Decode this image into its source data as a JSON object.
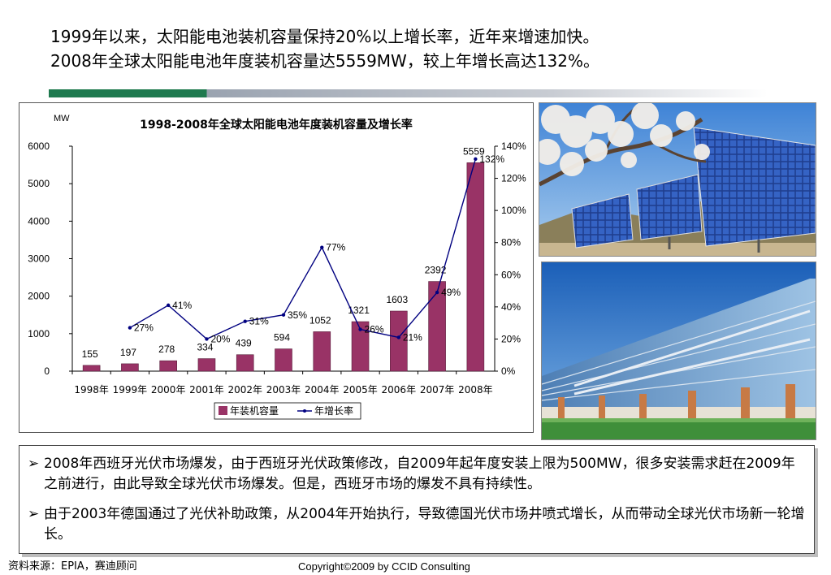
{
  "headline": {
    "line1": "1999年以来，太阳能电池装机容量保持20%以上增长率，近年来增速加快。",
    "line2": "2008年全球太阳能电池年度装机容量达5559MW，较上年增长高达132%。"
  },
  "chart_data": {
    "type": "bar",
    "title": "1998-2008年全球太阳能电池年度装机容量及增长率",
    "y_unit_label": "MW",
    "categories": [
      "1998年",
      "1999年",
      "2000年",
      "2001年",
      "2002年",
      "2003年",
      "2004年",
      "2005年",
      "2006年",
      "2007年",
      "2008年"
    ],
    "series": [
      {
        "name": "年装机容量",
        "type": "bar",
        "axis": "left",
        "color": "#993366",
        "values": [
          155,
          197,
          278,
          334,
          439,
          594,
          1052,
          1321,
          1603,
          2392,
          5559
        ],
        "labels": [
          "155",
          "197",
          "278",
          "334",
          "439",
          "594",
          "1052",
          "1321",
          "1603",
          "2392",
          "5559"
        ]
      },
      {
        "name": "年增长率",
        "type": "line",
        "axis": "right",
        "color": "#000080",
        "values": [
          null,
          27,
          41,
          20,
          31,
          35,
          77,
          26,
          21,
          49,
          132
        ],
        "labels": [
          "",
          "27%",
          "41%",
          "20%",
          "31%",
          "35%",
          "77%",
          "26%",
          "21%",
          "49%",
          "132%"
        ]
      }
    ],
    "ylim": [
      0,
      6000
    ],
    "y_ticks": [
      "0",
      "1000",
      "2000",
      "3000",
      "4000",
      "5000",
      "6000"
    ],
    "y2lim": [
      0,
      140
    ],
    "y2_ticks": [
      "0%",
      "20%",
      "40%",
      "60%",
      "80%",
      "100%",
      "120%",
      "140%"
    ],
    "legend_position": "bottom",
    "grid": false
  },
  "images": {
    "top": "solar-panels-with-blossom-photo",
    "bottom": "glass-office-building-photo"
  },
  "notes": [
    "2008年西班牙光伏市场爆发，由于西班牙光伏政策修改，自2009年起年度安装上限为500MW，很多安装需求赶在2009年之前进行，由此导致全球光伏市场爆发。但是，西班牙市场的爆发不具有持续性。",
    "由于2003年德国通过了光伏补助政策，从2004年开始执行，导致德国光伏市场井喷式增长，从而带动全球光伏市场新一轮增长。"
  ],
  "bullet_glyph": "➢",
  "source": "资料来源：EPIA，赛迪顾问",
  "copyright": "Copyright©2009 by CCID Consulting"
}
